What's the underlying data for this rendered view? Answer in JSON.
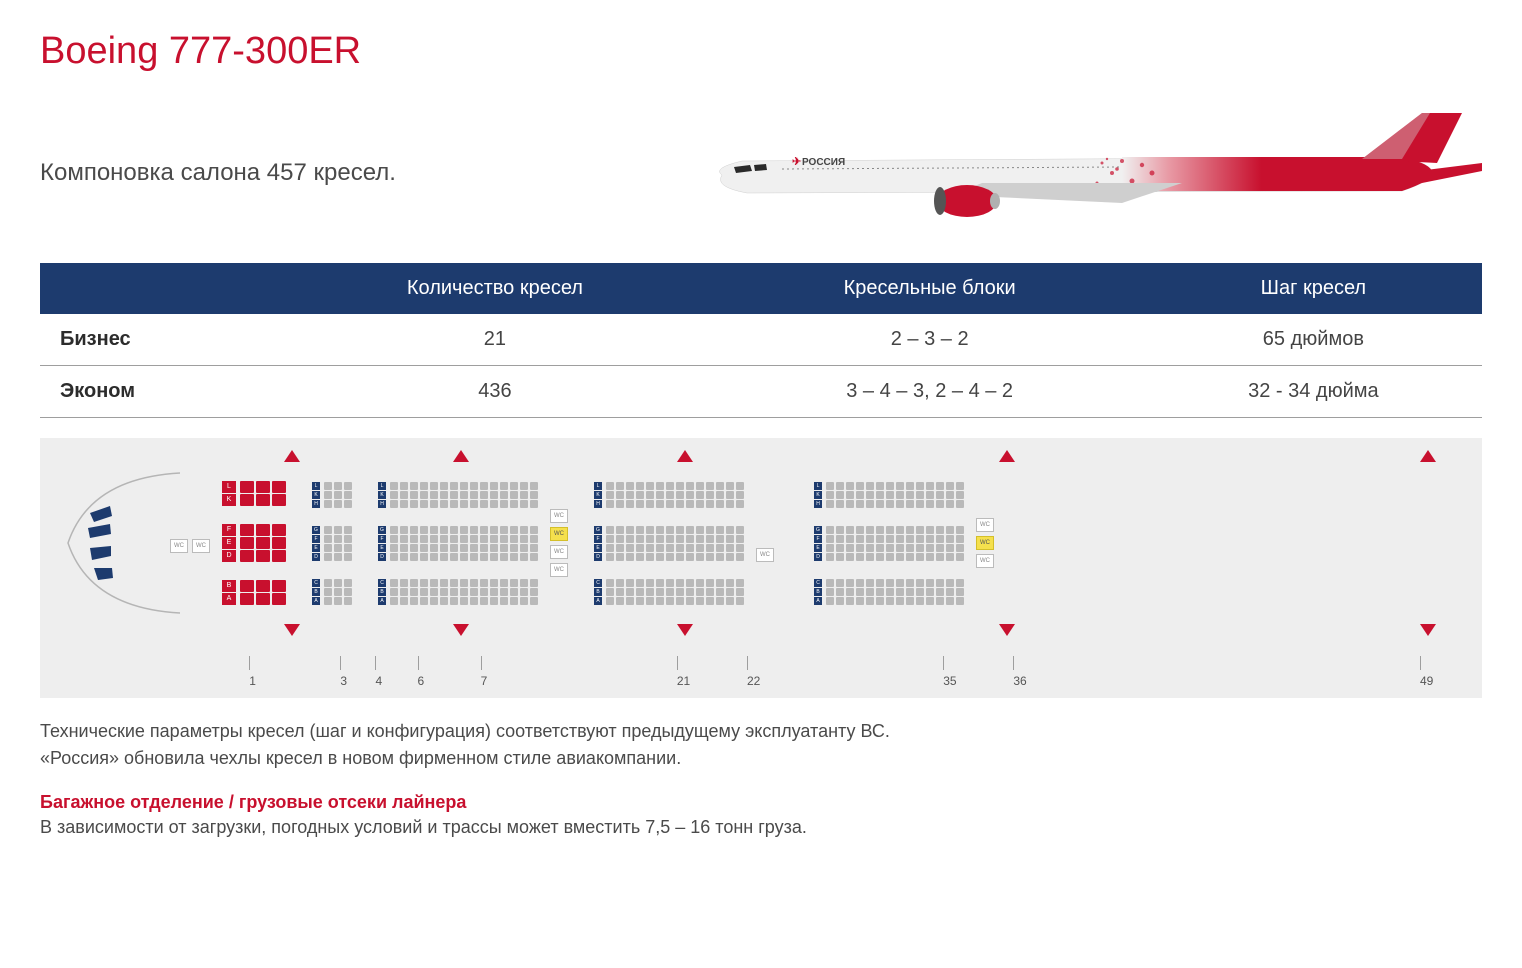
{
  "title": "Boeing 777-300ER",
  "title_color": "#c8102e",
  "subtitle": "Компоновка салона 457 кресел.",
  "airline_name": "РОССИЯ",
  "livery": {
    "fuselage_top": "#e8e8e8",
    "fuselage_bottom": "#ffffff",
    "tail_red": "#c8102e",
    "engine_red": "#c8102e",
    "cockpit_window": "#2a2a2a"
  },
  "table": {
    "header_bg": "#1d3b6e",
    "header_color": "#ffffff",
    "columns": [
      "",
      "Количество кресел",
      "Кресельные блоки",
      "Шаг кресел"
    ],
    "rows": [
      [
        "Бизнес",
        "21",
        "2 – 3 – 2",
        "65 дюймов"
      ],
      [
        "Эконом",
        "436",
        "3 – 4 – 3,  2 – 4 – 2",
        "32 - 34 дюйма"
      ]
    ]
  },
  "seatmap": {
    "bg": "#eeeeee",
    "business_color": "#c8102e",
    "economy_color": "#b9b9b9",
    "label_blue": "#1d3b6e",
    "wc_highlight": "#f5e04d",
    "row_letters_biz_top": [
      "L",
      "K"
    ],
    "row_letters_biz_mid": [
      "F",
      "E",
      "D"
    ],
    "row_letters_biz_bot": [
      "B",
      "A"
    ],
    "row_letters_eco_top": [
      "L",
      "K",
      "H"
    ],
    "row_letters_eco_mid": [
      "G",
      "F",
      "E",
      "D"
    ],
    "row_letters_eco_bot": [
      "C",
      "B",
      "A"
    ],
    "sections": [
      {
        "id": "biz",
        "type": "business",
        "cols": 3,
        "layout": [
          2,
          3,
          2
        ],
        "start": 1
      },
      {
        "id": "eco1",
        "type": "economy",
        "cols": 3,
        "layout": [
          3,
          4,
          3
        ],
        "start": 4,
        "label_first": true
      },
      {
        "id": "eco2",
        "type": "economy",
        "cols": 15,
        "layout": [
          3,
          4,
          3
        ],
        "start": 7,
        "label_first": true
      },
      {
        "id": "eco3",
        "type": "economy",
        "cols": 14,
        "layout": [
          3,
          4,
          3
        ],
        "start": 22,
        "label_first": true
      },
      {
        "id": "eco4",
        "type": "economy",
        "cols": 14,
        "layout": [
          3,
          4,
          3
        ],
        "start": 36,
        "label_first": true,
        "tail": true
      }
    ],
    "exit_positions_pct": [
      16,
      28,
      44,
      67,
      97
    ],
    "column_numbers": [
      {
        "n": "1",
        "pct": 13.5
      },
      {
        "n": "3",
        "pct": 20
      },
      {
        "n": "4",
        "pct": 22.5
      },
      {
        "n": "6",
        "pct": 25.5
      },
      {
        "n": "7",
        "pct": 30
      },
      {
        "n": "21",
        "pct": 44
      },
      {
        "n": "22",
        "pct": 49
      },
      {
        "n": "35",
        "pct": 63
      },
      {
        "n": "36",
        "pct": 68
      },
      {
        "n": "49",
        "pct": 97
      }
    ],
    "nose_wc_label": "WC"
  },
  "footnote_line1": "Технические параметры кресел (шаг и конфигурация) соответствуют предыдущему эксплуатанту ВС.",
  "footnote_line2": "«Россия» обновила чехлы кресел в новом фирменном стиле авиакомпании.",
  "cargo_title": "Багажное отделение / грузовые отсеки лайнера",
  "cargo_title_color": "#c8102e",
  "cargo_text": "В зависимости от загрузки, погодных условий и трассы может вместить 7,5 – 16 тонн груза."
}
